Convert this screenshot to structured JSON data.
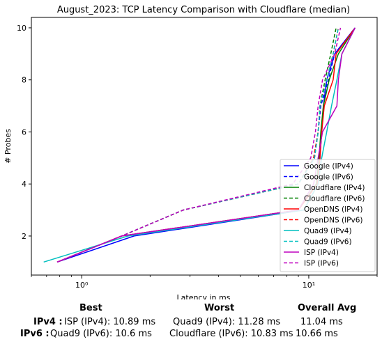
{
  "chart_data": {
    "type": "line",
    "title": "August_2023: TCP Latency Comparison with Cloudflare (median)",
    "xlabel": "Latency in ms",
    "ylabel": "# Probes",
    "xscale": "log",
    "xlim": [
      0.6,
      20
    ],
    "ylim": [
      0.5,
      10.4
    ],
    "xticks": [
      {
        "value": 1,
        "label": "10⁰"
      },
      {
        "value": 10,
        "label": "10¹"
      }
    ],
    "yticks": [
      2,
      4,
      6,
      8,
      10
    ],
    "grid": false,
    "legend_position": "lower-right",
    "series": [
      {
        "name": "Google (IPv4)",
        "color": "#0000ff",
        "dash": "solid",
        "x": [
          0.78,
          1.7,
          9.5,
          11.0,
          11.2,
          11.4,
          11.6,
          12.0,
          13.0,
          16.0
        ],
        "y": [
          1,
          2,
          3,
          4,
          5,
          6,
          7,
          8,
          9,
          10
        ]
      },
      {
        "name": "Google (IPv6)",
        "color": "#0000ff",
        "dash": "dashed",
        "x": [
          0.78,
          1.5,
          2.8,
          9.0,
          10.6,
          11.0,
          11.3,
          12.2,
          13.0,
          16.0
        ],
        "y": [
          1,
          2,
          3,
          4,
          5,
          6,
          7,
          8,
          9,
          10
        ]
      },
      {
        "name": "Cloudflare (IPv4)",
        "color": "#008000",
        "dash": "solid",
        "x": [
          0.78,
          1.5,
          9.0,
          10.8,
          11.1,
          11.3,
          11.6,
          12.3,
          13.5,
          16.0
        ],
        "y": [
          1,
          2,
          3,
          4,
          5,
          6,
          7,
          8,
          9,
          10
        ]
      },
      {
        "name": "Cloudflare (IPv6)",
        "color": "#008000",
        "dash": "dashed",
        "x": [
          0.78,
          1.5,
          2.8,
          9.0,
          10.5,
          11.0,
          11.2,
          11.8,
          12.5,
          13.2
        ],
        "y": [
          1,
          2,
          3,
          4,
          5,
          6,
          7,
          8,
          9,
          10
        ]
      },
      {
        "name": "OpenDNS (IPv4)",
        "color": "#ff0000",
        "dash": "solid",
        "x": [
          0.78,
          1.5,
          9.0,
          10.9,
          11.2,
          11.4,
          11.7,
          12.8,
          13.2,
          16.0
        ],
        "y": [
          1,
          2,
          3,
          4,
          5,
          6,
          7,
          8,
          9,
          10
        ]
      },
      {
        "name": "OpenDNS (IPv6)",
        "color": "#ff0000",
        "dash": "dashed",
        "x": [
          0.78,
          1.5,
          2.8,
          9.0,
          10.5,
          11.0,
          11.2,
          12.0,
          12.8,
          13.5
        ],
        "y": [
          1,
          2,
          3,
          4,
          5,
          6,
          7,
          8,
          9,
          10
        ]
      },
      {
        "name": "Quad9 (IPv4)",
        "color": "#00bfbf",
        "dash": "solid",
        "x": [
          0.68,
          1.6,
          9.5,
          11.0,
          11.4,
          12.0,
          12.6,
          13.3,
          14.0,
          16.0
        ],
        "y": [
          1,
          2,
          3,
          4,
          5,
          6,
          7,
          8,
          9,
          10
        ]
      },
      {
        "name": "Quad9 (IPv6)",
        "color": "#00bfbf",
        "dash": "dashed",
        "x": [
          0.78,
          1.5,
          2.8,
          9.0,
          10.6,
          11.0,
          11.2,
          12.0,
          12.8,
          13.5
        ],
        "y": [
          1,
          2,
          3,
          4,
          5,
          6,
          7,
          8,
          9,
          10
        ]
      },
      {
        "name": "ISP (IPv4)",
        "color": "#bf00bf",
        "dash": "solid",
        "x": [
          0.78,
          1.5,
          9.0,
          10.5,
          11.0,
          11.5,
          13.3,
          13.5,
          14.0,
          16.0
        ],
        "y": [
          1,
          2,
          3,
          4,
          5,
          6,
          7,
          8,
          9,
          10
        ]
      },
      {
        "name": "ISP (IPv6)",
        "color": "#bf00bf",
        "dash": "dashed",
        "x": [
          0.78,
          1.5,
          2.8,
          8.5,
          10.2,
          10.7,
          11.0,
          11.5,
          13.0,
          13.8
        ],
        "y": [
          1,
          2,
          3,
          4,
          5,
          6,
          7,
          8,
          9,
          10
        ]
      }
    ]
  },
  "stats": {
    "headers": {
      "best": "Best",
      "worst": "Worst",
      "avg": "Overall Avg"
    },
    "ipv4": {
      "label": "IPv4 :",
      "best": "ISP (IPv4): 10.89 ms",
      "worst": "Quad9 (IPv4): 11.28 ms",
      "avg": "11.04 ms"
    },
    "ipv6": {
      "label": "IPv6 :",
      "best": "Quad9 (IPv6): 10.6 ms",
      "worst": "Cloudflare (IPv6): 10.83 ms",
      "avg": "10.66 ms"
    }
  }
}
